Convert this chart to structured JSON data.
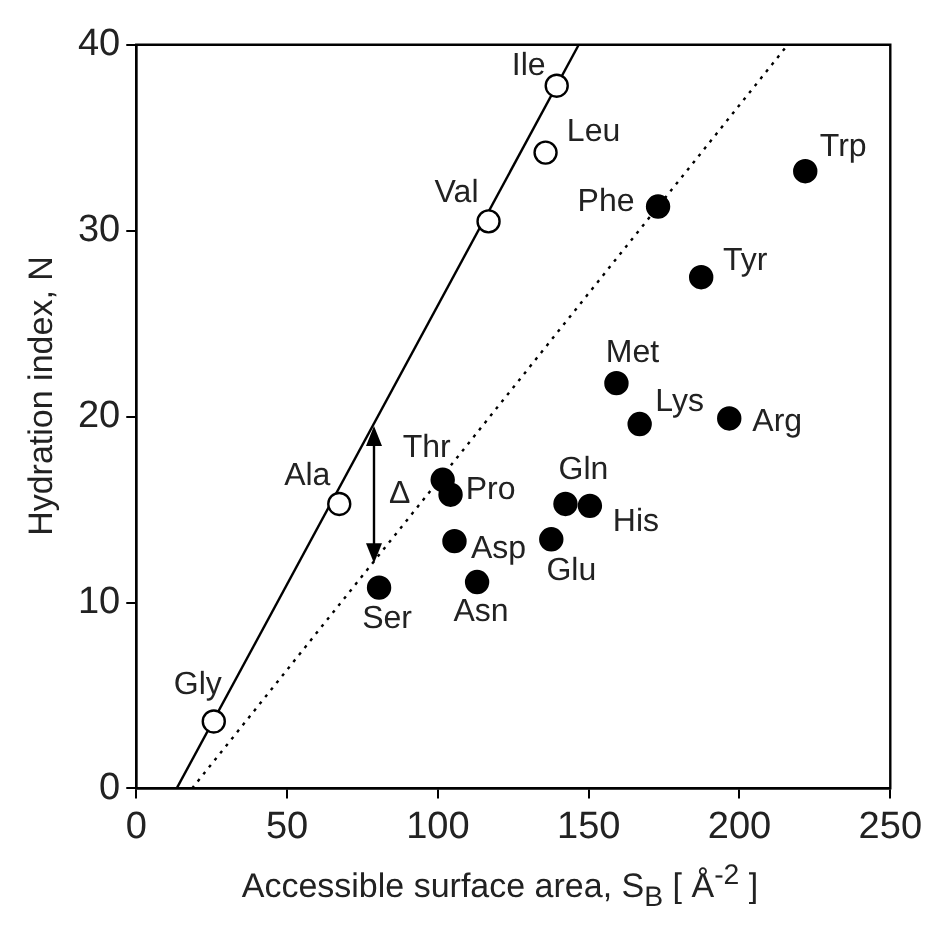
{
  "chart_data": {
    "type": "scatter",
    "xlabel": "Accessible surface area, S$_{B}$ [ Å$^{-2}$ ]",
    "ylabel": "Hydration index, N",
    "xlim": [
      0,
      250
    ],
    "xticks": [
      0,
      50,
      100,
      150,
      200,
      250
    ],
    "ylim": [
      0,
      40
    ],
    "yticks": [
      0,
      10,
      20,
      30,
      40
    ],
    "grid": false,
    "legend": false,
    "series": [
      {
        "type": "scatter",
        "marker": "circle",
        "color": "#ffffff",
        "x": [
          25.7,
          67.3,
          116.8,
          135.7,
          139.4
        ],
        "values": [
          3.6,
          15.3,
          30.5,
          34.2,
          37.8
        ]
      },
      {
        "type": "scatter",
        "marker": "circle",
        "color": "#000000",
        "x": [
          80.5,
          101.6,
          104.2,
          105.5,
          113,
          137.6,
          142.3,
          150.4,
          159.2,
          166.9,
          196.6,
          187.3,
          173,
          221.8
        ],
        "values": [
          10.8,
          16.6,
          15.8,
          13.3,
          11.1,
          13.4,
          15.3,
          15.2,
          21.8,
          19.6,
          19.9,
          27.5,
          31.3,
          33.2
        ]
      },
      {
        "type": "line",
        "marker": "none",
        "line_style": "solid",
        "color": "#000000",
        "x": [
          13.4,
          146.7
        ],
        "values": [
          0,
          40
        ]
      },
      {
        "type": "line",
        "marker": "none",
        "line_style": "dotted",
        "color": "#000000",
        "x": [
          18.5,
          216
        ],
        "values": [
          0,
          40
        ]
      }
    ],
    "annotations": [
      {
        "text": "Gly",
        "x": 25.7,
        "y": 3.6
      },
      {
        "text": "Ala",
        "x": 67.3,
        "y": 15.3
      },
      {
        "text": "Val",
        "x": 116.8,
        "y": 30.5
      },
      {
        "text": "Leu",
        "x": 135.7,
        "y": 34.2
      },
      {
        "text": "Ile",
        "x": 139.4,
        "y": 37.8
      },
      {
        "text": "Ser",
        "x": 80.5,
        "y": 10.8
      },
      {
        "text": "Thr",
        "x": 101.6,
        "y": 16.6
      },
      {
        "text": "Pro",
        "x": 104.2,
        "y": 15.8
      },
      {
        "text": "Asp",
        "x": 105.5,
        "y": 13.3
      },
      {
        "text": "Asn",
        "x": 113,
        "y": 11.1
      },
      {
        "text": "Glu",
        "x": 137.6,
        "y": 13.4
      },
      {
        "text": "Gln",
        "x": 142.3,
        "y": 15.3
      },
      {
        "text": "His",
        "x": 150.4,
        "y": 15.2
      },
      {
        "text": "Met",
        "x": 159.2,
        "y": 21.8
      },
      {
        "text": "Lys",
        "x": 166.9,
        "y": 19.6
      },
      {
        "text": "Arg",
        "x": 196.6,
        "y": 19.9
      },
      {
        "text": "Tyr",
        "x": 187.3,
        "y": 27.5
      },
      {
        "text": "Phe",
        "x": 173,
        "y": 31.3
      },
      {
        "text": "Trp",
        "x": 221.8,
        "y": 33.2
      },
      "Δ"
    ]
  }
}
